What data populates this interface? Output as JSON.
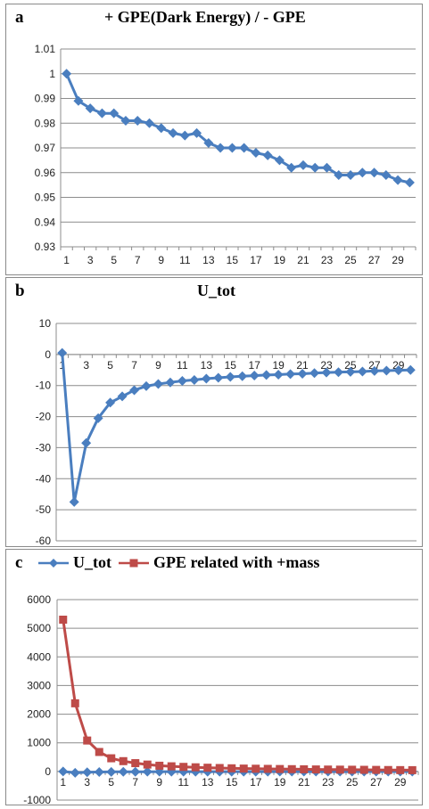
{
  "colors": {
    "series_blue": "#4a7ebf",
    "series_red": "#be4b48",
    "grid": "#8c8c8c",
    "axis": "#8c8c8c"
  },
  "chart_data": [
    {
      "panel": "a",
      "type": "line",
      "title": "+ GPE(Dark Energy) / - GPE",
      "xlabel": "",
      "ylabel": "",
      "x": [
        1,
        2,
        3,
        4,
        5,
        6,
        7,
        8,
        9,
        10,
        11,
        12,
        13,
        14,
        15,
        16,
        17,
        18,
        19,
        20,
        21,
        22,
        23,
        24,
        25,
        26,
        27,
        28,
        29,
        30
      ],
      "x_tick_labels": [
        "1",
        "3",
        "5",
        "7",
        "9",
        "11",
        "13",
        "15",
        "17",
        "19",
        "21",
        "23",
        "25",
        "27",
        "29"
      ],
      "ylim": [
        0.93,
        1.01
      ],
      "y_ticks": [
        "0.93",
        "0.94",
        "0.95",
        "0.96",
        "0.97",
        "0.98",
        "0.99",
        "1",
        "1.01"
      ],
      "grid": true,
      "series": [
        {
          "color": "#4a7ebf",
          "marker": "diamond",
          "values": [
            1.0,
            0.989,
            0.986,
            0.984,
            0.984,
            0.981,
            0.981,
            0.98,
            0.978,
            0.976,
            0.975,
            0.976,
            0.972,
            0.97,
            0.97,
            0.97,
            0.968,
            0.967,
            0.965,
            0.962,
            0.963,
            0.962,
            0.962,
            0.959,
            0.959,
            0.96,
            0.96,
            0.959,
            0.957,
            0.956
          ]
        }
      ]
    },
    {
      "panel": "b",
      "type": "line",
      "title": "U_tot",
      "xlabel": "",
      "ylabel": "",
      "x": [
        1,
        2,
        3,
        4,
        5,
        6,
        7,
        8,
        9,
        10,
        11,
        12,
        13,
        14,
        15,
        16,
        17,
        18,
        19,
        20,
        21,
        22,
        23,
        24,
        25,
        26,
        27,
        28,
        29,
        30
      ],
      "x_tick_labels": [
        "1",
        "3",
        "5",
        "7",
        "9",
        "11",
        "13",
        "15",
        "17",
        "19",
        "21",
        "23",
        "25",
        "27",
        "29"
      ],
      "ylim": [
        -60,
        10
      ],
      "y_ticks": [
        "-60",
        "-50",
        "-40",
        "-30",
        "-20",
        "-10",
        "0",
        "10"
      ],
      "grid": true,
      "series": [
        {
          "color": "#4a7ebf",
          "marker": "diamond",
          "values": [
            0.5,
            -47.5,
            -28.5,
            -20.5,
            -15.5,
            -13.5,
            -11.5,
            -10.2,
            -9.5,
            -9.0,
            -8.5,
            -8.2,
            -7.8,
            -7.5,
            -7.2,
            -7.0,
            -6.8,
            -6.6,
            -6.5,
            -6.3,
            -6.2,
            -6.0,
            -5.8,
            -5.7,
            -5.6,
            -5.5,
            -5.3,
            -5.2,
            -5.1,
            -5.0
          ]
        }
      ]
    },
    {
      "panel": "c",
      "type": "line",
      "title": "",
      "xlabel": "",
      "ylabel": "",
      "legend": "top",
      "x": [
        1,
        2,
        3,
        4,
        5,
        6,
        7,
        8,
        9,
        10,
        11,
        12,
        13,
        14,
        15,
        16,
        17,
        18,
        19,
        20,
        21,
        22,
        23,
        24,
        25,
        26,
        27,
        28,
        29,
        30
      ],
      "x_tick_labels": [
        "1",
        "3",
        "5",
        "7",
        "9",
        "11",
        "13",
        "15",
        "17",
        "19",
        "21",
        "23",
        "25",
        "27",
        "29"
      ],
      "ylim": [
        -1000,
        6000
      ],
      "y_ticks": [
        "-1000",
        "0",
        "1000",
        "2000",
        "3000",
        "4000",
        "5000",
        "6000"
      ],
      "grid": true,
      "series": [
        {
          "name": "U_tot",
          "color": "#4a7ebf",
          "marker": "diamond",
          "values": [
            0,
            -47,
            -28,
            -20,
            -15,
            -13,
            -11,
            -10,
            -9,
            -9,
            -8,
            -8,
            -8,
            -7,
            -7,
            -7,
            -7,
            -7,
            -6,
            -6,
            -6,
            -6,
            -6,
            -6,
            -6,
            -5,
            -5,
            -5,
            -5,
            -5
          ]
        },
        {
          "name": "GPE related with +mass",
          "color": "#be4b48",
          "marker": "square",
          "values": [
            5300,
            2380,
            1080,
            680,
            460,
            360,
            290,
            240,
            200,
            180,
            160,
            145,
            130,
            120,
            110,
            100,
            95,
            90,
            85,
            80,
            75,
            70,
            66,
            63,
            60,
            57,
            54,
            50,
            47,
            45
          ]
        }
      ]
    }
  ],
  "panels": {
    "a": {
      "letter": "a"
    },
    "b": {
      "letter": "b"
    },
    "c": {
      "letter": "c"
    }
  }
}
